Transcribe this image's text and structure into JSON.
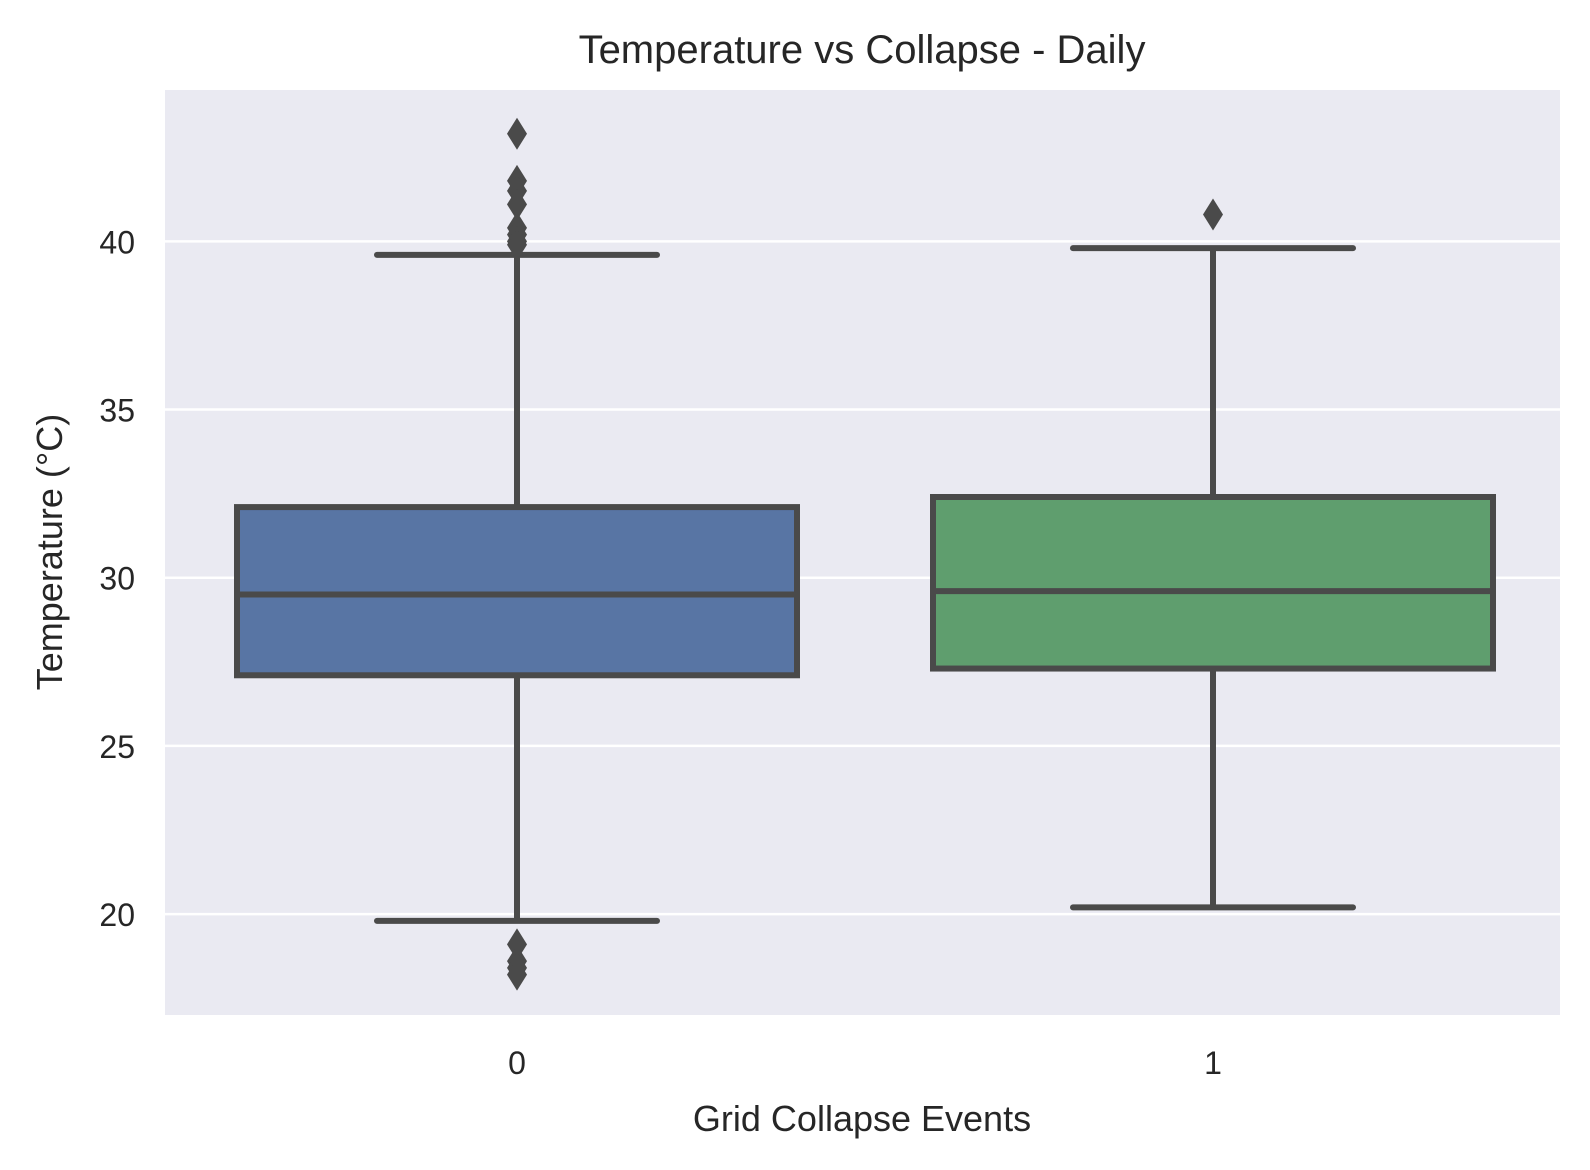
{
  "chart_data": {
    "type": "box",
    "title": "Temperature vs Collapse - Daily",
    "xlabel": "Grid Collapse Events",
    "ylabel": "Temperature (°C)",
    "categories": [
      "0",
      "1"
    ],
    "ylim": [
      17.0,
      44.5
    ],
    "yticks": [
      20,
      25,
      30,
      35,
      40
    ],
    "grid": true,
    "colors": {
      "background": "#eaeaf2",
      "grid": "#ffffff",
      "line": "#4a4a4a",
      "text": "#262626"
    },
    "series": [
      {
        "category": "0",
        "color": "#5875a4",
        "whisker_low": 19.8,
        "q1": 27.1,
        "median": 29.5,
        "q3": 32.1,
        "whisker_high": 39.6,
        "outliers": [
          43.2,
          41.8,
          41.5,
          41.1,
          40.4,
          40.2,
          40.0,
          39.9,
          19.1,
          18.6,
          18.4,
          18.2
        ]
      },
      {
        "category": "1",
        "color": "#5f9e6e",
        "whisker_low": 20.2,
        "q1": 27.3,
        "median": 29.6,
        "q3": 32.4,
        "whisker_high": 39.8,
        "outliers": [
          40.8
        ]
      }
    ]
  }
}
